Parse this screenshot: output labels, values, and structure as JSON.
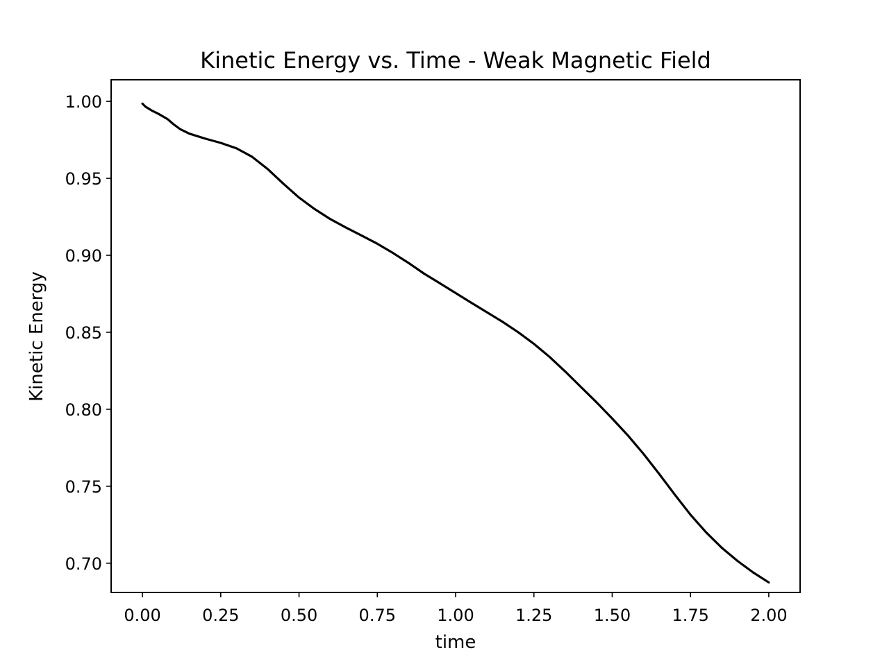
{
  "chart_data": {
    "type": "line",
    "title": "Kinetic Energy vs. Time - Weak Magnetic Field",
    "xlabel": "time",
    "ylabel": "Kinetic Energy",
    "xlim": [
      -0.1,
      2.1
    ],
    "ylim": [
      0.681,
      1.014
    ],
    "xticks": [
      0.0,
      0.25,
      0.5,
      0.75,
      1.0,
      1.25,
      1.5,
      1.75,
      2.0
    ],
    "xtick_labels": [
      "0.00",
      "0.25",
      "0.50",
      "0.75",
      "1.00",
      "1.25",
      "1.50",
      "1.75",
      "2.00"
    ],
    "yticks": [
      0.7,
      0.75,
      0.8,
      0.85,
      0.9,
      0.95,
      1.0
    ],
    "ytick_labels": [
      "0.70",
      "0.75",
      "0.80",
      "0.85",
      "0.90",
      "0.95",
      "1.00"
    ],
    "grid": false,
    "color": "#000000",
    "series": [
      {
        "x": [
          0.0,
          0.01,
          0.03,
          0.05,
          0.08,
          0.1,
          0.12,
          0.15,
          0.2,
          0.25,
          0.3,
          0.35,
          0.4,
          0.45,
          0.5,
          0.55,
          0.6,
          0.65,
          0.7,
          0.75,
          0.8,
          0.85,
          0.9,
          0.95,
          1.0,
          1.05,
          1.1,
          1.15,
          1.2,
          1.25,
          1.3,
          1.35,
          1.4,
          1.45,
          1.5,
          1.55,
          1.6,
          1.65,
          1.7,
          1.75,
          1.8,
          1.85,
          1.9,
          1.95,
          2.0
        ],
        "values": [
          0.9985,
          0.9965,
          0.994,
          0.992,
          0.9885,
          0.985,
          0.982,
          0.979,
          0.9758,
          0.973,
          0.9695,
          0.964,
          0.956,
          0.9465,
          0.9375,
          0.93,
          0.9235,
          0.918,
          0.9128,
          0.9075,
          0.9015,
          0.895,
          0.888,
          0.8818,
          0.8755,
          0.8692,
          0.863,
          0.8568,
          0.85,
          0.8425,
          0.834,
          0.8245,
          0.8145,
          0.8045,
          0.794,
          0.783,
          0.771,
          0.758,
          0.7445,
          0.7315,
          0.72,
          0.71,
          0.7015,
          0.694,
          0.6875
        ]
      }
    ]
  }
}
